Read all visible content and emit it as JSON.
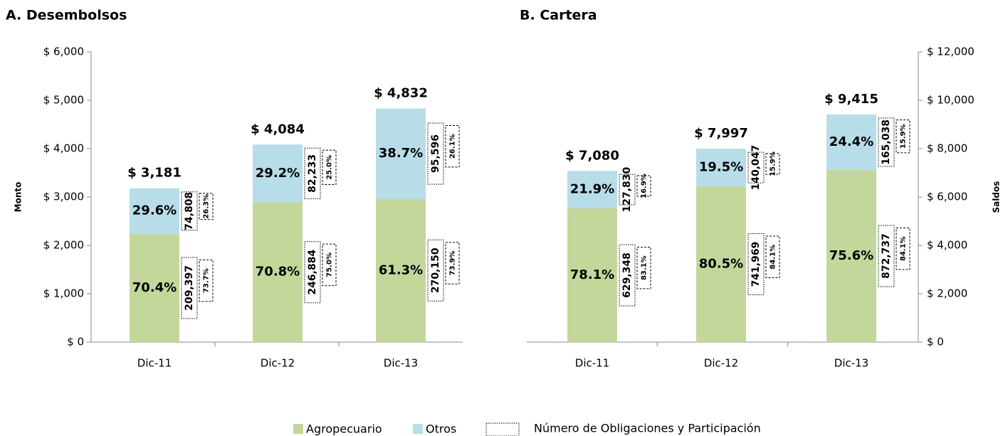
{
  "chart_data": [
    {
      "type": "bar",
      "stacked": true,
      "title": "A. Desembolsos",
      "y_label": "Monto",
      "categories": [
        "Dic-11",
        "Dic-12",
        "Dic-13"
      ],
      "series": [
        {
          "name": "Agropecuario",
          "color": "#c4d79b",
          "text_color": "#8db04a",
          "values": [
            2239,
            2891,
            2962
          ],
          "share_labels": [
            "70.4%",
            "70.8%",
            "61.3%"
          ],
          "obligations": [
            "209,397",
            "246,884",
            "270,150"
          ],
          "obligation_shares": [
            "73.7%",
            "75.0%",
            "73.9%"
          ]
        },
        {
          "name": "Otros",
          "color": "#b7dde8",
          "text_color": "#4bacc6",
          "values": [
            942,
            1193,
            1870
          ],
          "share_labels": [
            "29.6%",
            "29.2%",
            "38.7%"
          ],
          "obligations": [
            "74,808",
            "82,233",
            "95,596"
          ],
          "obligation_shares": [
            "26.3%",
            "25.0%",
            "26.1%"
          ]
        }
      ],
      "total_labels": [
        "$ 3,181",
        "$ 4,084",
        "$ 4,832"
      ],
      "ylim": [
        0,
        6000
      ],
      "yticks": [
        {
          "value": 0,
          "label": "$ 0"
        },
        {
          "value": 1000,
          "label": "$ 1,000"
        },
        {
          "value": 2000,
          "label": "$ 2,000"
        },
        {
          "value": 3000,
          "label": "$ 3,000"
        },
        {
          "value": 4000,
          "label": "$ 4,000"
        },
        {
          "value": 5000,
          "label": "$ 5,000"
        },
        {
          "value": 6000,
          "label": "$ 6,000"
        }
      ]
    },
    {
      "type": "bar",
      "stacked": true,
      "title": "B. Cartera",
      "y2_label": "Saldos",
      "categories": [
        "Dic-11",
        "Dic-12",
        "Dic-13"
      ],
      "series": [
        {
          "name": "Agropecuario",
          "color": "#c4d79b",
          "text_color": "#8db04a",
          "axis": "y2",
          "values": [
            5529,
            6438,
            7118
          ],
          "share_labels": [
            "78.1%",
            "80.5%",
            "75.6%"
          ],
          "obligations": [
            "629,348",
            "741,969",
            "872,737"
          ],
          "obligation_shares": [
            "83.1%",
            "84.1%",
            "84.1%"
          ]
        },
        {
          "name": "Otros",
          "color": "#b7dde8",
          "text_color": "#4bacc6",
          "axis": "y2",
          "values": [
            1551,
            1559,
            2297
          ],
          "share_labels": [
            "21.9%",
            "19.5%",
            "24.4%"
          ],
          "obligations": [
            "127,830",
            "140,047",
            "165,038"
          ],
          "obligation_shares": [
            "16.9%",
            "15.9%",
            "15.9%"
          ]
        }
      ],
      "total_labels": [
        "$ 7,080",
        "$ 7,997",
        "$ 9,415"
      ],
      "y2lim": [
        0,
        12000
      ],
      "y2ticks": [
        {
          "value": 0,
          "label": "$ 0"
        },
        {
          "value": 2000,
          "label": "$ 2,000"
        },
        {
          "value": 4000,
          "label": "$ 4,000"
        },
        {
          "value": 6000,
          "label": "$ 6,000"
        },
        {
          "value": 8000,
          "label": "$ 8,000"
        },
        {
          "value": 10000,
          "label": "$ 10,000"
        },
        {
          "value": 12000,
          "label": "$ 12,000"
        }
      ]
    }
  ],
  "legend": {
    "entries": [
      "Agropecuario",
      "Otros"
    ],
    "box_label": "Número de Obligaciones y Participación"
  }
}
